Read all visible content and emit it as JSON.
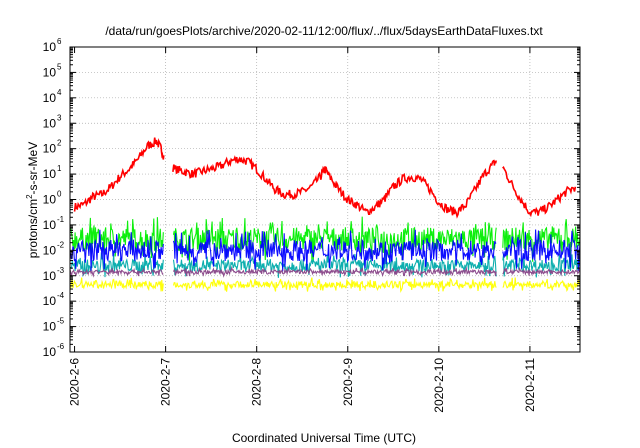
{
  "chart_data": {
    "type": "line",
    "title": "/data/run/goesPlots/archive/2020-02-11/12:00/flux/../flux/5daysEarthDataFluxes.txt",
    "xlabel": "Coordinated Universal Time (UTC)",
    "ylabel": {
      "base": "protons/cm",
      "sup": "2",
      "rest": "-s-sr-MeV"
    },
    "yscale": "log",
    "ylim": [
      1e-06,
      1000000.0
    ],
    "ytick_exponents": [
      -6,
      -5,
      -4,
      -3,
      -2,
      -1,
      0,
      1,
      2,
      3,
      4,
      5,
      6
    ],
    "ytick_base": "10",
    "xlim_days": [
      -0.05,
      5.55
    ],
    "xtick_labels": [
      "2020-2-6",
      "2020-2-7",
      "2020-2-8",
      "2020-2-9",
      "2020-2-10",
      "2020-2-11"
    ],
    "grid": true,
    "legend": "none",
    "data_gaps_days": [
      [
        0.98,
        1.08
      ],
      [
        4.63,
        4.7
      ]
    ],
    "series": [
      {
        "color": "#ff0000",
        "log10_points": [
          [
            0.0,
            -0.3
          ],
          [
            0.1,
            -0.2
          ],
          [
            0.2,
            0.1
          ],
          [
            0.3,
            0.2
          ],
          [
            0.4,
            0.5
          ],
          [
            0.5,
            0.9
          ],
          [
            0.6,
            1.2
          ],
          [
            0.7,
            1.6
          ],
          [
            0.8,
            2.1
          ],
          [
            0.9,
            2.3
          ],
          [
            0.95,
            2.0
          ],
          [
            1.0,
            1.5
          ],
          [
            1.1,
            1.2
          ],
          [
            1.2,
            1.1
          ],
          [
            1.3,
            1.0
          ],
          [
            1.4,
            1.1
          ],
          [
            1.5,
            1.2
          ],
          [
            1.6,
            1.3
          ],
          [
            1.7,
            1.5
          ],
          [
            1.8,
            1.6
          ],
          [
            1.9,
            1.5
          ],
          [
            2.0,
            1.2
          ],
          [
            2.1,
            0.8
          ],
          [
            2.2,
            0.4
          ],
          [
            2.3,
            0.2
          ],
          [
            2.4,
            0.2
          ],
          [
            2.5,
            0.3
          ],
          [
            2.6,
            0.5
          ],
          [
            2.7,
            0.9
          ],
          [
            2.75,
            1.2
          ],
          [
            2.8,
            0.9
          ],
          [
            2.9,
            0.4
          ],
          [
            3.0,
            0.0
          ],
          [
            3.1,
            -0.2
          ],
          [
            3.2,
            -0.5
          ],
          [
            3.3,
            -0.3
          ],
          [
            3.4,
            0.0
          ],
          [
            3.5,
            0.5
          ],
          [
            3.6,
            0.8
          ],
          [
            3.7,
            0.9
          ],
          [
            3.8,
            0.8
          ],
          [
            3.9,
            0.4
          ],
          [
            4.0,
            -0.1
          ],
          [
            4.1,
            -0.4
          ],
          [
            4.2,
            -0.5
          ],
          [
            4.3,
            -0.2
          ],
          [
            4.4,
            0.4
          ],
          [
            4.5,
            1.0
          ],
          [
            4.6,
            1.4
          ],
          [
            4.65,
            1.6
          ],
          [
            4.7,
            1.3
          ],
          [
            4.8,
            0.6
          ],
          [
            4.9,
            0.0
          ],
          [
            5.0,
            -0.5
          ],
          [
            5.1,
            -0.5
          ],
          [
            5.2,
            -0.3
          ],
          [
            5.3,
            0.0
          ],
          [
            5.4,
            0.3
          ],
          [
            5.5,
            0.5
          ]
        ]
      },
      {
        "color": "#00ee00",
        "log10_level": -1.55,
        "log10_spread": 0.65
      },
      {
        "color": "#00aaaa",
        "log10_level": -2.6,
        "log10_spread": 0.35
      },
      {
        "color": "#0000ff",
        "log10_level": -2.0,
        "log10_spread": 0.6
      },
      {
        "color": "#884488",
        "log10_level": -2.85,
        "log10_spread": 0.12
      },
      {
        "color": "#ffff00",
        "log10_level": -3.35,
        "log10_spread": 0.2
      }
    ]
  }
}
